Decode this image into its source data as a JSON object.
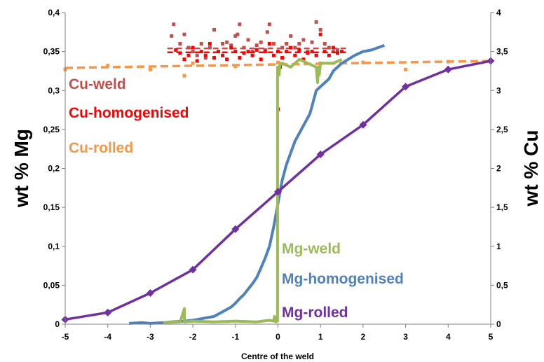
{
  "chart_data": {
    "type": "line",
    "xlabel": "Centre of the weld",
    "ylabel_left": "wt % Mg",
    "ylabel_right": "wt % Cu",
    "xlim": [
      -5,
      5
    ],
    "ylim_left": [
      0,
      0.4
    ],
    "ylim_right": [
      0,
      4
    ],
    "x_ticks": [
      -5,
      -4,
      -3,
      -2,
      -1,
      0,
      1,
      2,
      3,
      4,
      5
    ],
    "x_tick_labels": [
      "-5",
      "-4",
      "-3",
      "-2",
      "-1",
      "0",
      "1",
      "2",
      "3",
      "4",
      "5"
    ],
    "y_left_ticks": [
      0,
      0.05,
      0.1,
      0.15,
      0.2,
      0.25,
      0.3,
      0.35,
      0.4
    ],
    "y_left_tick_labels": [
      "0",
      "0,05",
      "0,1",
      "0,15",
      "0,2",
      "0,25",
      "0,3",
      "0,35",
      "0,4"
    ],
    "y_right_ticks": [
      0,
      0.5,
      1,
      1.5,
      2,
      2.5,
      3,
      3.5,
      4
    ],
    "y_right_tick_labels": [
      "0",
      "0,5",
      "1",
      "1,5",
      "2",
      "2,5",
      "3",
      "3,5",
      "4"
    ],
    "grid": false,
    "series": [
      {
        "name": "Cu-weld",
        "axis": "right",
        "style": "scatter+dashed-trend",
        "color": "#c0504d",
        "trend_value": 3.54,
        "points": [
          [
            -2.5,
            3.7
          ],
          [
            -2.45,
            3.85
          ],
          [
            -2.3,
            3.6
          ],
          [
            -2.2,
            3.72
          ],
          [
            -2.1,
            3.55
          ],
          [
            -2.0,
            3.5
          ],
          [
            -1.9,
            3.45
          ],
          [
            -1.8,
            3.6
          ],
          [
            -1.7,
            3.42
          ],
          [
            -1.6,
            3.55
          ],
          [
            -1.5,
            3.78
          ],
          [
            -1.4,
            3.5
          ],
          [
            -1.3,
            3.6
          ],
          [
            -1.2,
            3.62
          ],
          [
            -1.1,
            3.58
          ],
          [
            -1.0,
            3.7
          ],
          [
            -0.95,
            3.72
          ],
          [
            -0.9,
            3.85
          ],
          [
            -0.8,
            3.55
          ],
          [
            -0.7,
            3.65
          ],
          [
            -0.6,
            3.5
          ],
          [
            -0.5,
            3.58
          ],
          [
            -0.4,
            3.62
          ],
          [
            -0.3,
            3.52
          ],
          [
            -0.25,
            3.75
          ],
          [
            -0.2,
            3.85
          ],
          [
            -0.1,
            3.6
          ],
          [
            0.0,
            3.5
          ],
          [
            0.1,
            3.55
          ],
          [
            0.2,
            3.6
          ],
          [
            0.3,
            3.7
          ],
          [
            0.4,
            3.55
          ],
          [
            0.5,
            3.6
          ],
          [
            0.6,
            3.65
          ],
          [
            0.7,
            3.5
          ],
          [
            0.8,
            3.62
          ],
          [
            0.9,
            3.88
          ],
          [
            1.0,
            3.78
          ],
          [
            1.1,
            3.6
          ],
          [
            1.2,
            3.55
          ],
          [
            1.3,
            3.5
          ],
          [
            1.4,
            3.52
          ]
        ]
      },
      {
        "name": "Cu-homogenised",
        "axis": "right",
        "style": "scatter+dashed-trend",
        "color": "#ff0000",
        "trend_value": 3.49,
        "points": [
          [
            -2.4,
            3.52
          ],
          [
            -2.3,
            3.48
          ],
          [
            -2.2,
            3.4
          ],
          [
            -2.1,
            3.45
          ],
          [
            -2.0,
            3.55
          ],
          [
            -1.9,
            3.38
          ],
          [
            -1.8,
            3.5
          ],
          [
            -1.7,
            3.45
          ],
          [
            -1.6,
            3.6
          ],
          [
            -1.5,
            3.42
          ],
          [
            -1.4,
            3.5
          ],
          [
            -1.3,
            3.45
          ],
          [
            -1.2,
            3.4
          ],
          [
            -1.1,
            3.55
          ],
          [
            -1.0,
            3.5
          ],
          [
            -0.9,
            3.42
          ],
          [
            -0.8,
            3.48
          ],
          [
            -0.7,
            3.5
          ],
          [
            -0.6,
            3.45
          ],
          [
            -0.5,
            3.52
          ],
          [
            -0.4,
            3.4
          ],
          [
            -0.3,
            3.5
          ],
          [
            -0.2,
            3.6
          ],
          [
            -0.1,
            3.45
          ],
          [
            0.0,
            3.5
          ],
          [
            0.05,
            3.3
          ],
          [
            0.1,
            3.42
          ],
          [
            0.2,
            3.5
          ],
          [
            0.3,
            3.55
          ],
          [
            0.4,
            3.45
          ],
          [
            0.5,
            3.52
          ],
          [
            0.6,
            3.4
          ],
          [
            0.7,
            3.48
          ],
          [
            0.8,
            3.5
          ],
          [
            0.9,
            3.45
          ],
          [
            1.0,
            3.72
          ],
          [
            1.1,
            3.5
          ],
          [
            1.2,
            3.45
          ],
          [
            1.3,
            3.55
          ],
          [
            1.4,
            3.48
          ],
          [
            1.5,
            3.5
          ],
          [
            0.0,
            2.76
          ]
        ]
      },
      {
        "name": "Cu-rolled",
        "axis": "right",
        "style": "scatter+dashed-trend",
        "color": "#f79646",
        "trend_x": [
          -5,
          5
        ],
        "trend_y": [
          3.29,
          3.38
        ],
        "points": [
          [
            -5.0,
            3.27
          ],
          [
            -4.0,
            3.32
          ],
          [
            -3.0,
            3.27
          ],
          [
            -2.2,
            3.19
          ],
          [
            -2.0,
            3.35
          ],
          [
            -1.0,
            3.31
          ],
          [
            0.0,
            3.36
          ],
          [
            1.0,
            3.35
          ],
          [
            2.0,
            3.36
          ],
          [
            3.0,
            3.27
          ],
          [
            4.0,
            3.37
          ]
        ]
      },
      {
        "name": "Mg-weld",
        "axis": "left",
        "style": "line",
        "color": "#9bbb59",
        "x": [
          -2.7,
          -2.3,
          -2.2,
          -2.2,
          -2.18,
          -2.0,
          -1.5,
          -1.0,
          -0.5,
          -0.2,
          -0.1,
          -0.08,
          -0.05,
          -0.02,
          -0.01,
          -0.01,
          0.0,
          0.0,
          0.01,
          0.02,
          0.03,
          0.04,
          0.05,
          0.1,
          0.3,
          0.5,
          0.7,
          0.9,
          0.93,
          0.95,
          0.97,
          1.0,
          1.3,
          1.5
        ],
        "y": [
          0.002,
          0.003,
          0.02,
          0.003,
          0.003,
          0.004,
          0.003,
          0.004,
          0.003,
          0.005,
          0.004,
          0.01,
          0.003,
          0.004,
          0.004,
          0.33,
          0.33,
          0.32,
          0.325,
          0.33,
          0.32,
          0.33,
          0.335,
          0.335,
          0.33,
          0.34,
          0.335,
          0.33,
          0.31,
          0.33,
          0.32,
          0.335,
          0.335,
          0.34
        ]
      },
      {
        "name": "Mg-homogenised",
        "axis": "left",
        "style": "line",
        "color": "#4f81bd",
        "x": [
          -3.5,
          -3.2,
          -3.0,
          -2.7,
          -2.5,
          -2.2,
          -2.0,
          -1.8,
          -1.5,
          -1.3,
          -1.1,
          -1.0,
          -0.9,
          -0.8,
          -0.7,
          -0.6,
          -0.5,
          -0.4,
          -0.3,
          -0.2,
          -0.1,
          0.0,
          0.1,
          0.2,
          0.3,
          0.4,
          0.5,
          0.6,
          0.7,
          0.75,
          0.8,
          0.85,
          0.9,
          1.0,
          1.1,
          1.2,
          1.3,
          1.5,
          1.8,
          2.0,
          2.2,
          2.5
        ],
        "y": [
          0.001,
          0.002,
          0.001,
          0.002,
          0.003,
          0.004,
          0.005,
          0.007,
          0.01,
          0.016,
          0.022,
          0.027,
          0.033,
          0.038,
          0.045,
          0.052,
          0.06,
          0.072,
          0.085,
          0.1,
          0.125,
          0.155,
          0.185,
          0.205,
          0.22,
          0.235,
          0.245,
          0.255,
          0.265,
          0.27,
          0.28,
          0.29,
          0.3,
          0.305,
          0.31,
          0.315,
          0.325,
          0.335,
          0.345,
          0.35,
          0.352,
          0.358
        ]
      },
      {
        "name": "Mg-rolled",
        "axis": "left",
        "style": "line+diamond-markers",
        "color": "#7030a0",
        "x": [
          -5,
          -4,
          -3,
          -2,
          -1,
          0,
          1,
          2,
          3,
          4,
          5
        ],
        "y": [
          0.006,
          0.015,
          0.04,
          0.07,
          0.122,
          0.17,
          0.218,
          0.256,
          0.305,
          0.327,
          0.338
        ]
      }
    ]
  }
}
